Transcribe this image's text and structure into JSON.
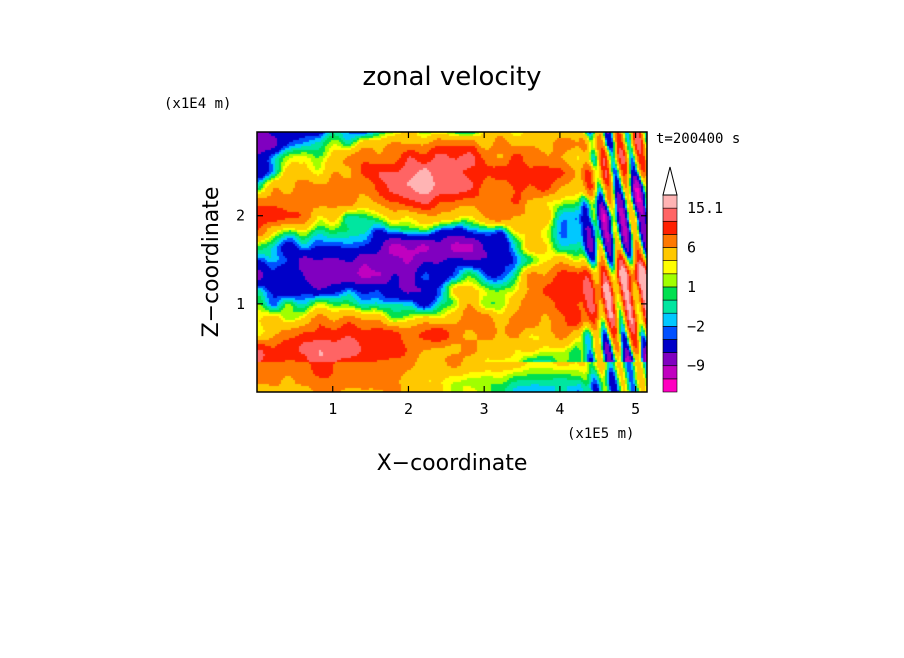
{
  "chart_data": {
    "type": "heatmap",
    "title": "zonal velocity",
    "xlabel": "X−coordinate",
    "ylabel": "Z−coordinate",
    "x_unit": "(x1E5 m)",
    "y_unit": "(x1E4 m)",
    "time_label": "t=200400 s",
    "xlim": [
      0,
      5.15
    ],
    "ylim": [
      0,
      2.95
    ],
    "x_ticks": [
      1,
      2,
      3,
      4,
      5
    ],
    "y_ticks": [
      1,
      2
    ],
    "colorbar": {
      "levels": [
        -15,
        -12,
        -9,
        -6,
        -3,
        -2,
        -1,
        0,
        1,
        2,
        3,
        6,
        9,
        12,
        15.1
      ],
      "labels": [
        "15.1",
        "6",
        "1",
        "−2",
        "−9"
      ],
      "label_values": [
        15.1,
        6,
        1,
        -2,
        -9
      ],
      "colors": [
        "#ff00c0",
        "#c000c0",
        "#8000c0",
        "#0000c8",
        "#0050ff",
        "#00c8ff",
        "#00e6a0",
        "#00e050",
        "#a0ff00",
        "#ffff00",
        "#ffc800",
        "#ff7800",
        "#ff2000",
        "#ff6464",
        "#ffb4b4"
      ],
      "max_arrow": true
    },
    "field_description": "zonal velocity field with banded positive (yellow/orange) and negative (blue) anomalies tilted across the domain"
  }
}
